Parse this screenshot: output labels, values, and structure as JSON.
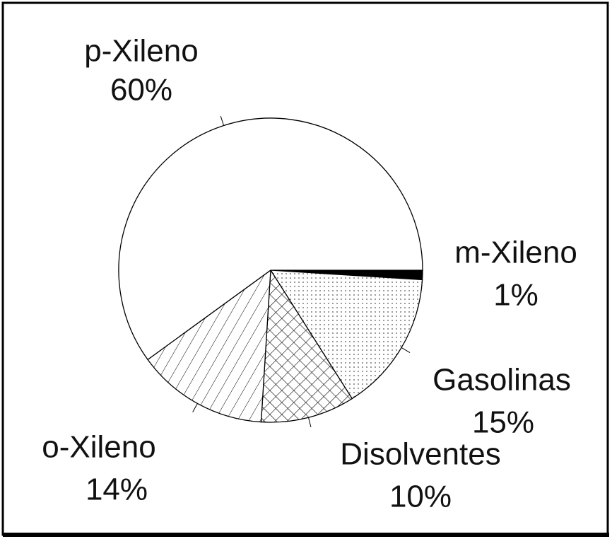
{
  "chart_data": {
    "type": "pie",
    "categories": [
      "m-Xileno",
      "Gasolinas",
      "Disolventes",
      "o-Xileno",
      "p-Xileno"
    ],
    "values": [
      1,
      15,
      10,
      14,
      60
    ],
    "value_labels": [
      "1%",
      "15%",
      "10%",
      "14%",
      "60%"
    ],
    "fills": [
      "solid",
      "dots",
      "crosshatch",
      "hatch",
      "none"
    ],
    "color": "#000000"
  }
}
